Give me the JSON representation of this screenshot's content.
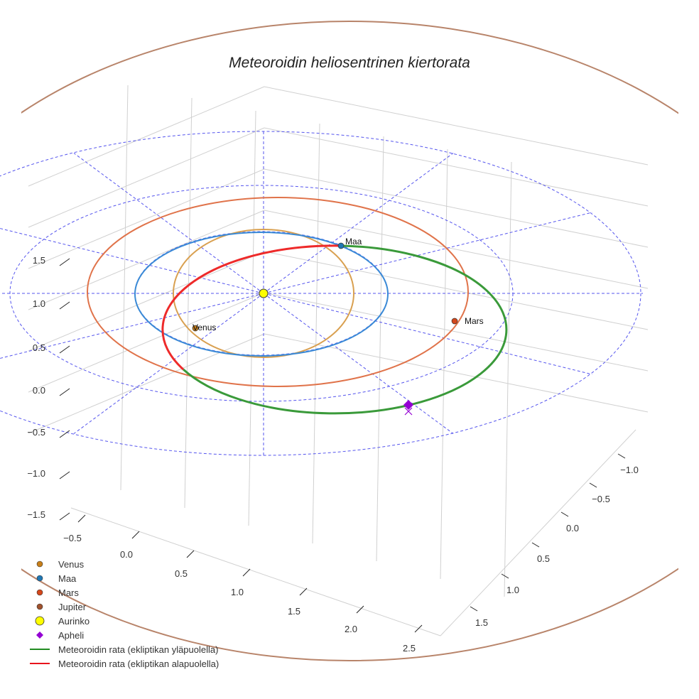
{
  "chart_data": {
    "type": "line",
    "title": "Meteoroidin heliosentrinen kiertorata",
    "projection": "3d",
    "x_ticks": [
      "−0.5",
      "0.0",
      "0.5",
      "1.0",
      "1.5",
      "2.0",
      "2.5"
    ],
    "y_ticks": [
      "−1.0",
      "−0.5",
      "0.0",
      "0.5",
      "1.0",
      "1.5"
    ],
    "z_ticks": [
      "1.5",
      "1.0",
      "0.5",
      "0.0",
      "−0.5",
      "−1.0",
      "−1.5"
    ],
    "planet_labels": {
      "venus": "Venus",
      "maa": "Maa",
      "mars": "Mars"
    },
    "orbits_au": {
      "venus": 0.72,
      "maa": 1.0,
      "mars": 1.52,
      "jupiter": 5.2
    },
    "legend": [
      {
        "label": "Venus",
        "color": "#c87f1a",
        "marker": "circle"
      },
      {
        "label": "Maa",
        "color": "#1f77b4",
        "marker": "circle"
      },
      {
        "label": "Mars",
        "color": "#d4471b",
        "marker": "circle"
      },
      {
        "label": "Jupiter",
        "color": "#a0522d",
        "marker": "circle"
      },
      {
        "label": "Aurinko",
        "color": "#ffff00",
        "marker": "big-circle"
      },
      {
        "label": "Apheli",
        "color": "#9400d3",
        "marker": "diamond"
      },
      {
        "label": "Meteoroidin rata (ekliptikan yläpuolella)",
        "color": "#228b22",
        "marker": "line"
      },
      {
        "label": "Meteoroidin rata (ekliptikan alapuolella)",
        "color": "#e8131c",
        "marker": "line"
      }
    ],
    "legend_position": "lower-left"
  }
}
